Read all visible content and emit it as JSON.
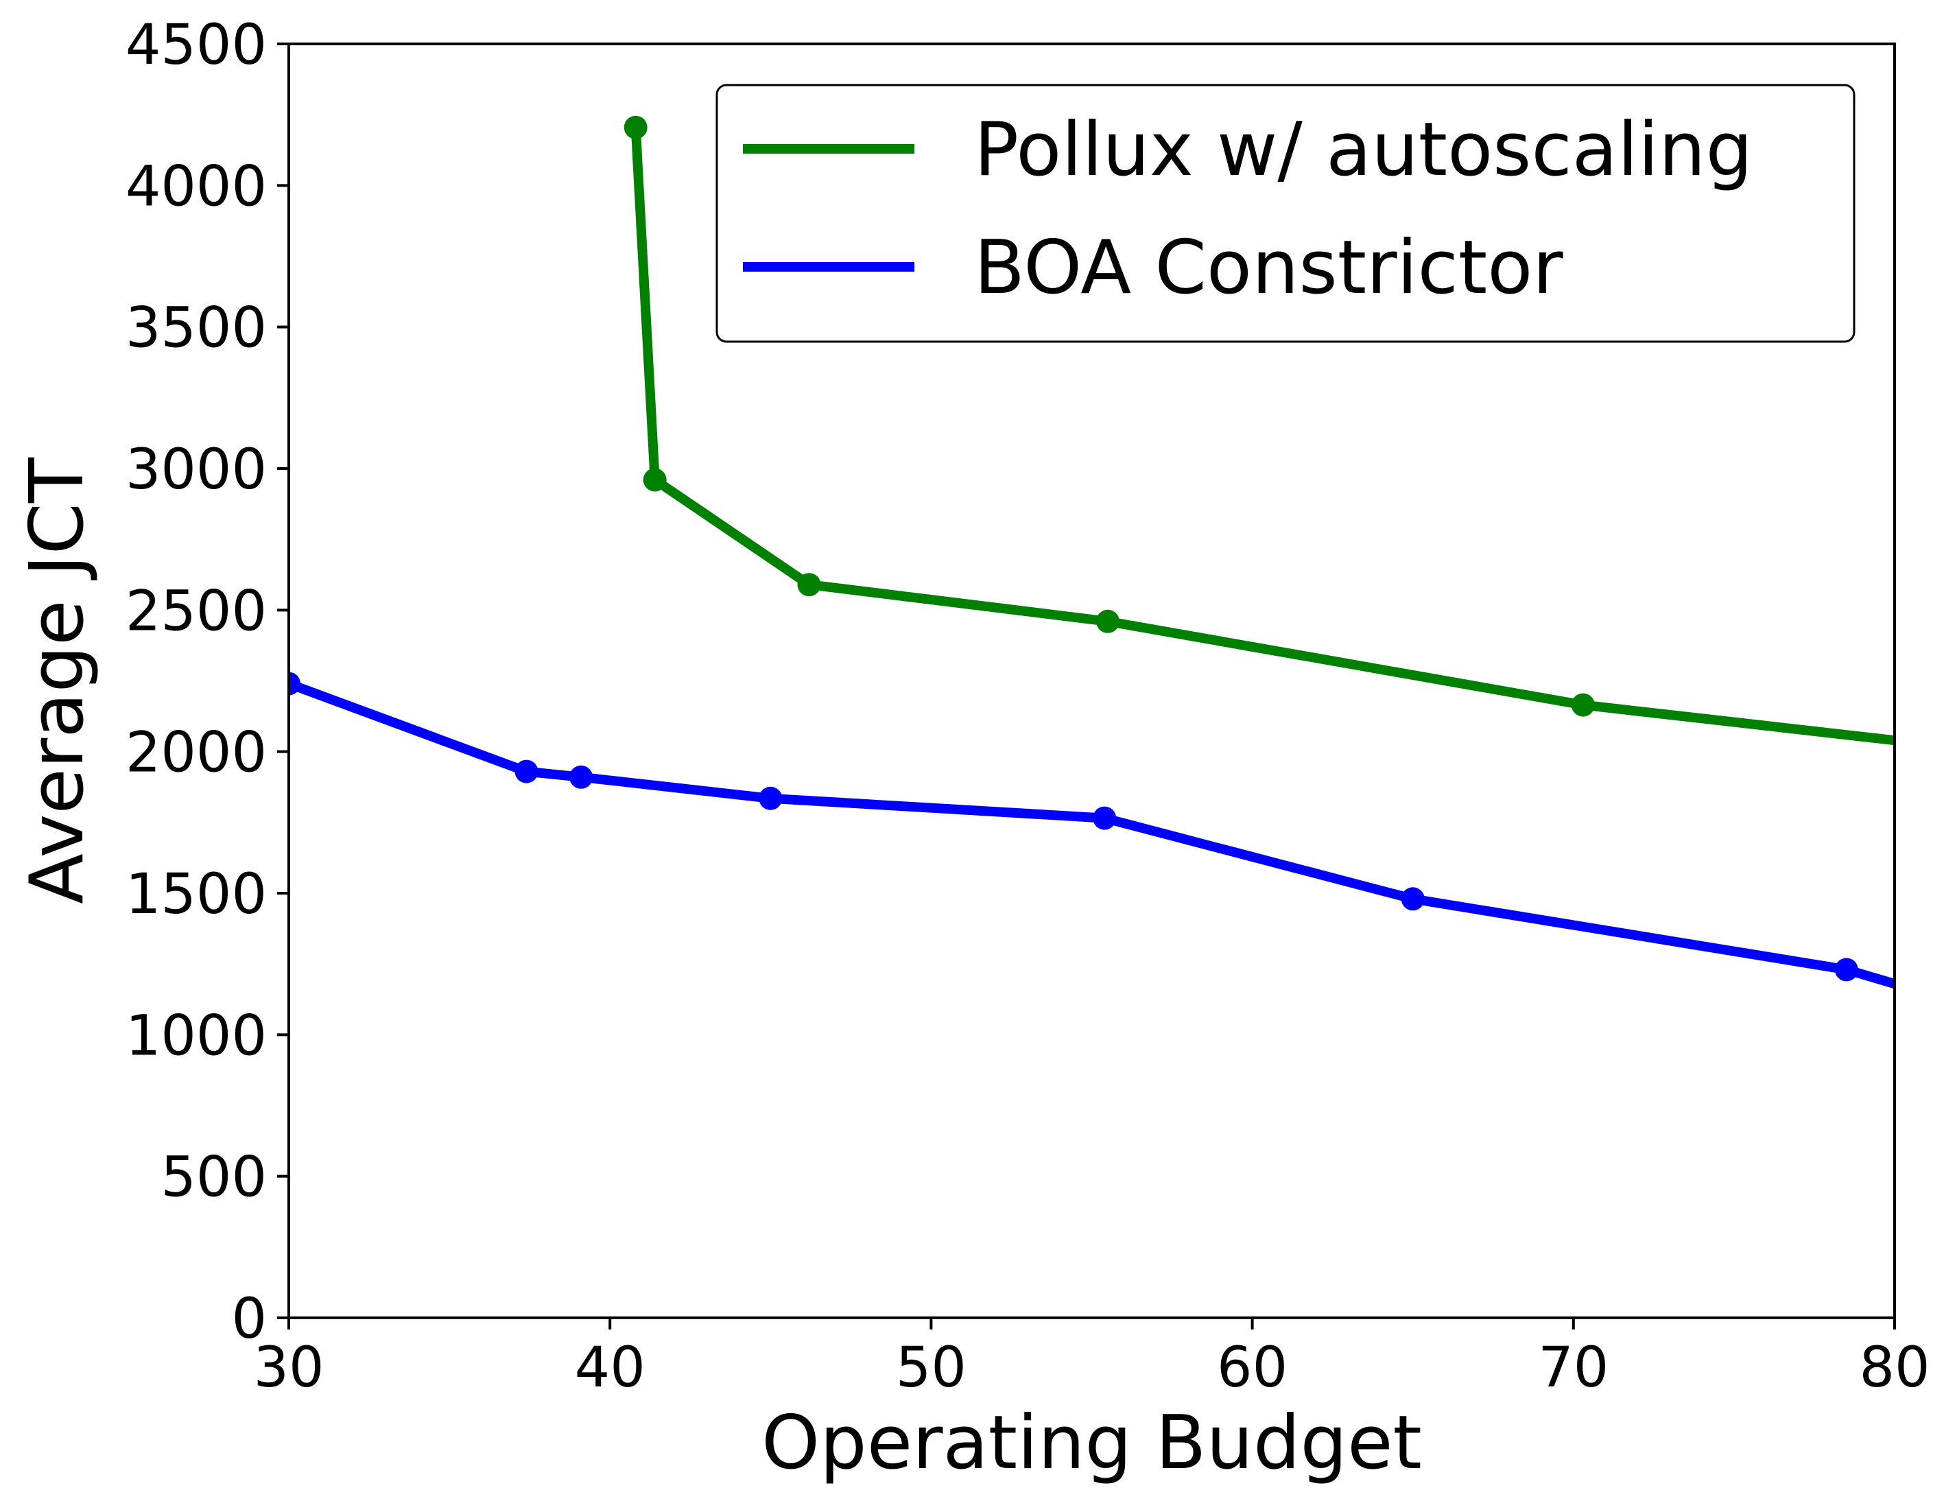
{
  "chart_data": {
    "type": "line",
    "title": "",
    "xlabel": "Operating Budget",
    "ylabel": "Average JCT",
    "xlim": [
      30,
      80
    ],
    "ylim": [
      0,
      4500
    ],
    "xticks": [
      30,
      40,
      50,
      60,
      70,
      80
    ],
    "yticks": [
      0,
      500,
      1000,
      1500,
      2000,
      2500,
      3000,
      3500,
      4000,
      4500
    ],
    "grid": false,
    "legend_position": "top-right",
    "series": [
      {
        "name": "Pollux w/ autoscaling",
        "color": "#008000",
        "x": [
          40.8,
          41.4,
          46.2,
          55.5,
          70.3,
          80.0
        ],
        "y": [
          4205,
          2960,
          2590,
          2460,
          2165,
          2040
        ],
        "markers_at": [
          0,
          1,
          2,
          3,
          4
        ]
      },
      {
        "name": "BOA Constrictor",
        "color": "#0000ff",
        "x": [
          30.0,
          37.4,
          39.1,
          45.0,
          55.4,
          65.0,
          78.5,
          80.0
        ],
        "y": [
          2240,
          1930,
          1910,
          1835,
          1765,
          1480,
          1230,
          1180
        ],
        "markers_at": [
          0,
          1,
          2,
          3,
          4,
          5,
          6
        ]
      }
    ]
  }
}
